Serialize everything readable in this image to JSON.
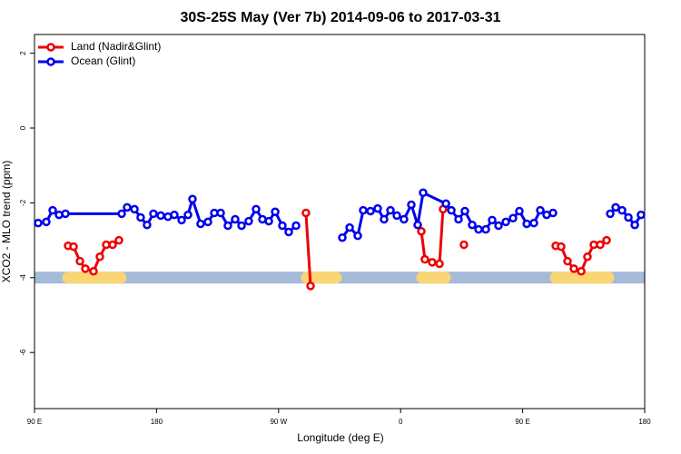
{
  "chart_data": {
    "type": "line",
    "title": "30S-25S May (Ver 7b)   2014-09-06 to 2017-03-31",
    "x_label": "Longitude (deg E)",
    "y_label": "XCO2 - MLO trend (ppm)",
    "xlim": [
      90,
      540
    ],
    "xticks": [
      {
        "value": 90,
        "label": "90 E"
      },
      180,
      {
        "value": 270,
        "label": "90 W"
      },
      {
        "value": 360,
        "label": "0"
      },
      {
        "value": 450,
        "label": "90 E"
      },
      {
        "value": 540,
        "label": "180"
      }
    ],
    "ylim": [
      -7.5,
      2.5
    ],
    "yticks": [
      2,
      0,
      -2,
      -4,
      -6
    ],
    "legend": "top-left",
    "band": {
      "y": -4,
      "color": "#a5b9d9",
      "land_color": "#f9d673",
      "land": [
        [
          114.8,
          153.6
        ],
        [
          290.9,
          312.3
        ],
        [
          375.9,
          392.7
        ],
        [
          474.4,
          513.2
        ]
      ]
    },
    "series": [
      {
        "name": "Land (Nadir&Glint)",
        "color": "#ee0000",
        "x": [
          114.8,
          118.8,
          123.5,
          127.5,
          133.5,
          138.2,
          142.9,
          147.6,
          152.3,
          null,
          290.2,
          293.6,
          null,
          375.3,
          377.9,
          383.3,
          388.7,
          391.3,
          null,
          406.7,
          null,
          474.4,
          478.4,
          483.1,
          487.8,
          493.2,
          497.8,
          502.5,
          507.2,
          511.9
        ],
        "values": [
          -3.15,
          -3.17,
          -3.56,
          -3.76,
          -3.83,
          -3.44,
          -3.12,
          -3.12,
          -3.0,
          null,
          -2.27,
          -4.22,
          null,
          -2.76,
          -3.51,
          -3.59,
          -3.63,
          -2.17,
          null,
          -3.12,
          null,
          -3.15,
          -3.17,
          -3.56,
          -3.76,
          -3.83,
          -3.44,
          -3.12,
          -3.12,
          -3.0
        ]
      },
      {
        "name": "Ocean (Glint)",
        "color": "#0000ee",
        "x": [
          92.7,
          98.7,
          103.4,
          108.1,
          112.8,
          154.3,
          158.3,
          163.7,
          168.3,
          173.0,
          177.7,
          183.1,
          188.4,
          193.1,
          198.5,
          203.2,
          206.5,
          212.5,
          217.9,
          222.6,
          227.3,
          232.6,
          238.0,
          242.7,
          248.0,
          253.4,
          258.1,
          262.8,
          267.5,
          272.8,
          277.5,
          282.9,
          null,
          317.0,
          322.4,
          328.4,
          332.4,
          337.8,
          343.1,
          347.8,
          352.5,
          357.2,
          362.5,
          367.9,
          372.6,
          376.6,
          393.4,
          397.4,
          402.7,
          407.4,
          412.8,
          417.5,
          422.8,
          427.5,
          432.2,
          437.6,
          442.9,
          447.6,
          453.0,
          458.3,
          463.0,
          467.7,
          472.4,
          null,
          514.6,
          518.6,
          523.3,
          528.0,
          532.7,
          537.3
        ],
        "values": [
          -2.54,
          -2.51,
          -2.2,
          -2.32,
          -2.29,
          -2.29,
          -2.12,
          -2.17,
          -2.39,
          -2.59,
          -2.29,
          -2.34,
          -2.37,
          -2.32,
          -2.46,
          -2.32,
          -1.9,
          -2.56,
          -2.51,
          -2.27,
          -2.27,
          -2.61,
          -2.44,
          -2.61,
          -2.49,
          -2.17,
          -2.44,
          -2.49,
          -2.24,
          -2.61,
          -2.78,
          -2.61,
          null,
          -2.93,
          -2.66,
          -2.88,
          -2.2,
          -2.22,
          -2.15,
          -2.44,
          -2.2,
          -2.34,
          -2.44,
          -2.05,
          -2.59,
          -1.73,
          -2.02,
          -2.2,
          -2.44,
          -2.22,
          -2.59,
          -2.71,
          -2.71,
          -2.46,
          -2.61,
          -2.51,
          -2.41,
          -2.22,
          -2.56,
          -2.54,
          -2.2,
          -2.32,
          -2.27,
          null,
          -2.29,
          -2.12,
          -2.2,
          -2.39,
          -2.59,
          -2.32
        ]
      }
    ]
  }
}
